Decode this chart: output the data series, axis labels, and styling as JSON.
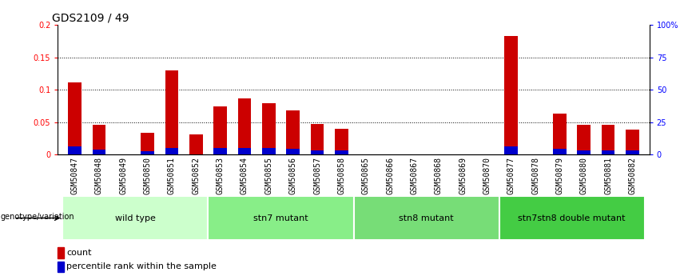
{
  "title": "GDS2109 / 49",
  "samples": [
    "GSM50847",
    "GSM50848",
    "GSM50849",
    "GSM50850",
    "GSM50851",
    "GSM50852",
    "GSM50853",
    "GSM50854",
    "GSM50855",
    "GSM50856",
    "GSM50857",
    "GSM50858",
    "GSM50865",
    "GSM50866",
    "GSM50867",
    "GSM50868",
    "GSM50869",
    "GSM50870",
    "GSM50877",
    "GSM50878",
    "GSM50879",
    "GSM50880",
    "GSM50881",
    "GSM50882"
  ],
  "counts": [
    0.111,
    0.046,
    0.0,
    0.034,
    0.13,
    0.031,
    0.074,
    0.086,
    0.079,
    0.068,
    0.047,
    0.04,
    0.0,
    0.0,
    0.0,
    0.0,
    0.0,
    0.0,
    0.183,
    0.0,
    0.063,
    0.046,
    0.046,
    0.038
  ],
  "percentile_ranks": [
    0.012,
    0.008,
    0.0,
    0.005,
    0.01,
    0.0,
    0.01,
    0.01,
    0.01,
    0.009,
    0.007,
    0.006,
    0.0,
    0.0,
    0.0,
    0.0,
    0.0,
    0.0,
    0.013,
    0.0,
    0.009,
    0.007,
    0.007,
    0.006
  ],
  "groups": [
    {
      "label": "wild type",
      "start": 0,
      "end": 6,
      "color": "#ccffcc"
    },
    {
      "label": "stn7 mutant",
      "start": 6,
      "end": 12,
      "color": "#88ee88"
    },
    {
      "label": "stn8 mutant",
      "start": 12,
      "end": 18,
      "color": "#77dd77"
    },
    {
      "label": "stn7stn8 double mutant",
      "start": 18,
      "end": 24,
      "color": "#44cc44"
    }
  ],
  "ylim_left": [
    0,
    0.2
  ],
  "ylim_right": [
    0,
    100
  ],
  "yticks_left": [
    0,
    0.05,
    0.1,
    0.15,
    0.2
  ],
  "yticks_right": [
    0,
    25,
    50,
    75,
    100
  ],
  "bar_color": "#cc0000",
  "pct_color": "#0000cc",
  "bar_width": 0.55,
  "bg_color": "#ffffff",
  "title_fontsize": 10,
  "tick_fontsize": 7,
  "label_fontsize": 8,
  "group_label_fontsize": 8,
  "geno_label_fontsize": 7,
  "legend_fontsize": 8
}
